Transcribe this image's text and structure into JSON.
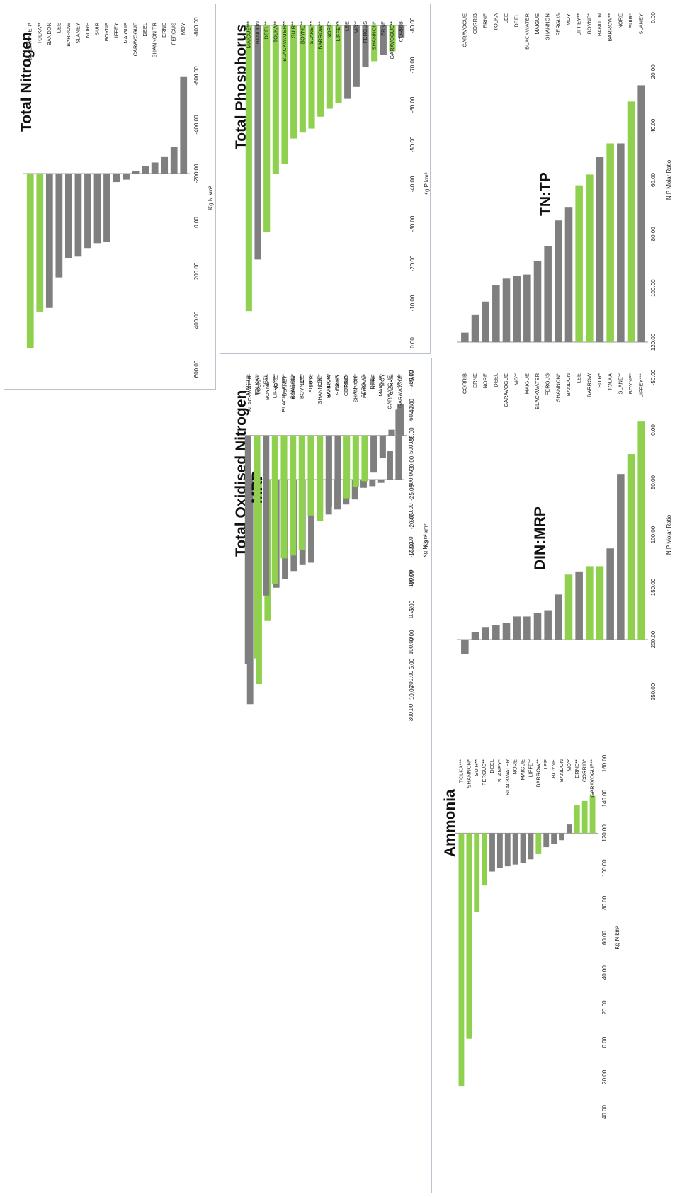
{
  "colors": {
    "gray": "#7f7f80",
    "green": "#8fd14f"
  },
  "chart_data": [
    {
      "type": "bar",
      "title": "Total Nitrogen",
      "xlabel": "Kg N km²",
      "xlim": [
        -800,
        600
      ],
      "ticks": [
        "-800.00",
        "-600.00",
        "-400.00",
        "-200.00",
        "0.00",
        "200.00",
        "400.00",
        "600.00"
      ],
      "categories": [
        "BLACKWATER*",
        "TOLKA**",
        "BANDON",
        "LEE",
        "BARROW",
        "SLANEY",
        "NORE",
        "SUIR",
        "BOYNE",
        "LIFFEY",
        "MAIGUE",
        "CARAVOGUE",
        "DEEL",
        "SHANNON TR",
        "ERNE",
        "FERGUS",
        "MOY"
      ],
      "values": [
        -715,
        -565,
        -550,
        -425,
        -345,
        -340,
        -305,
        -285,
        -280,
        -35,
        -25,
        10,
        30,
        45,
        70,
        110,
        395
      ],
      "colors": [
        "green",
        "green",
        "gray",
        "gray",
        "gray",
        "gray",
        "gray",
        "gray",
        "gray",
        "gray",
        "gray",
        "gray",
        "gray",
        "gray",
        "gray",
        "gray",
        "gray"
      ]
    },
    {
      "type": "bar",
      "title": "Total Phosphorus",
      "xlabel": "Kg P km²",
      "xlim": [
        -80,
        0
      ],
      "ticks": [
        "-80.00",
        "-70.00",
        "-60.00",
        "-50.00",
        "-40.00",
        "-30.00",
        "-20.00",
        "-10.00",
        "0.00"
      ],
      "categories": [
        "MAIGUE***",
        "BANDON",
        "DEEL**",
        "TOLKA**",
        "BLACKWATER**",
        "SUIR**",
        "BOYNE**",
        "SLANEY*",
        "BARROW**",
        "NORE*",
        "LIFFEY*",
        "LEE",
        "MOY",
        "FERGUS",
        "SHANNON*",
        "ERNE",
        "GARAVOGUE**",
        "CORRIB"
      ],
      "values": [
        -72,
        -59,
        -52,
        -37.5,
        -35,
        -28.5,
        -27,
        -26,
        -23,
        -21,
        -19.5,
        -18.5,
        -15.5,
        -10.5,
        -9,
        -7.5,
        -6.5,
        -3
      ],
      "colors": [
        "green",
        "gray",
        "green",
        "green",
        "green",
        "green",
        "green",
        "green",
        "green",
        "green",
        "green",
        "gray",
        "gray",
        "gray",
        "green",
        "gray",
        "green",
        "gray"
      ]
    },
    {
      "type": "bar",
      "title": "TN:TP",
      "xlabel": "N:P Molar Ratio",
      "xlim": [
        0,
        120
      ],
      "ticks": [
        "0.00",
        "20.00",
        "40.00",
        "60.00",
        "80.00",
        "100.00",
        "120.00"
      ],
      "categories": [
        "GARAVOGUE",
        "CORRIB",
        "ERNE",
        "TOLKA",
        "LEE",
        "DEEL",
        "BLACKWATER",
        "MAIGUE",
        "SHANNON",
        "FERGUS",
        "MOY",
        "LIFFEY**",
        "BOYNE*",
        "BANDON",
        "BARROW**",
        "NORE",
        "SUIR*",
        "SLANEY"
      ],
      "values": [
        3.5,
        10,
        15,
        21,
        23.5,
        24.5,
        25,
        30,
        35.5,
        45,
        50,
        58,
        62,
        68.5,
        73.5,
        73.5,
        89,
        95
      ],
      "colors": [
        "gray",
        "gray",
        "gray",
        "gray",
        "gray",
        "gray",
        "gray",
        "gray",
        "gray",
        "gray",
        "gray",
        "green",
        "green",
        "gray",
        "green",
        "gray",
        "green",
        "gray"
      ]
    },
    {
      "type": "bar",
      "title": "Total Oxidised Nitrogen",
      "xlabel": "Kg N km²",
      "xlim": [
        -700,
        300
      ],
      "ticks": [
        "-700.00",
        "-600.00",
        "-500.00",
        "-400.00",
        "-300.00",
        "-200.00",
        "-100.00",
        "0.00",
        "100.00",
        "200.00",
        "300.00"
      ],
      "categories": [
        "BLACKWATER",
        "TOLKA*",
        "BOYNE***",
        "NORE",
        "SLANEY",
        "BARROW",
        "LEE",
        "SUIR",
        "SHANNON*",
        "BANDON",
        "ERNE",
        "CORRIB",
        "LIFFEY",
        "FERGUS",
        "DEEL",
        "MAIGUE",
        "GARAVOGUE",
        "MOY"
      ],
      "values": [
        -675,
        -615,
        -425,
        -325,
        -300,
        -275,
        -255,
        -250,
        -125,
        -105,
        -90,
        -75,
        -60,
        -25,
        -20,
        -10,
        85,
        210
      ],
      "colors": [
        "gray",
        "green",
        "green",
        "gray",
        "gray",
        "gray",
        "gray",
        "gray",
        "green",
        "gray",
        "gray",
        "gray",
        "gray",
        "gray",
        "gray",
        "gray",
        "gray",
        "gray"
      ]
    },
    {
      "type": "bar",
      "title": "MRP",
      "xlabel": "Kg P km²",
      "xlim": [
        -45,
        10
      ],
      "ticks": [
        "-45.00",
        "-40.00",
        "-35.00",
        "-30.00",
        "-25.00",
        "-20.00",
        "-15.00",
        "-10.00",
        "-5.00",
        "0.00",
        "5.00",
        "10.00"
      ],
      "categories": [
        "MAIGUE",
        "TOLKA**",
        "DEEL",
        "LIFFEY***",
        "BLACKWATER*",
        "BANDON*",
        "BOYNE***",
        "SUIR***",
        "LEE*",
        "BARROW",
        "SLANEY",
        "ERNE*",
        "SHANNON*",
        "FERGUS*",
        "NORE",
        "MOY",
        "CORRIB",
        "GARAVOGUE"
      ],
      "values": [
        -40,
        -39,
        -28,
        -26,
        -21.5,
        -21,
        -20,
        -14,
        -13,
        -12.5,
        -12,
        -11,
        -9,
        -8,
        -6.5,
        -4,
        1,
        5.5
      ],
      "colors": [
        "gray",
        "green",
        "gray",
        "green",
        "green",
        "green",
        "green",
        "green",
        "green",
        "gray",
        "gray",
        "green",
        "green",
        "green",
        "gray",
        "gray",
        "gray",
        "gray"
      ]
    },
    {
      "type": "bar",
      "title": "DIN:MRP",
      "xlabel": "N:P Molar Ratio",
      "xlim": [
        -50,
        250
      ],
      "ticks": [
        "-50.00",
        "0.00",
        "50.00",
        "100.00",
        "150.00",
        "200.00",
        "250.00"
      ],
      "categories": [
        "CORRIB",
        "ERNE",
        "NORE",
        "DEEL",
        "GARAVOGUE",
        "MOY",
        "MAIGUE",
        "BLACKWATER",
        "FERGUS",
        "SHANNON*",
        "BANDON",
        "LEE",
        "BARROW",
        "SUIR*",
        "TOLKA",
        "SLANEY",
        "BOYNE*",
        "LIFFEY***"
      ],
      "values": [
        -14,
        7,
        12,
        14,
        16,
        22,
        22,
        25,
        28,
        43,
        62,
        65,
        70,
        70,
        87,
        158,
        177,
        208
      ],
      "colors": [
        "gray",
        "gray",
        "gray",
        "gray",
        "gray",
        "gray",
        "gray",
        "gray",
        "gray",
        "gray",
        "green",
        "gray",
        "green",
        "green",
        "gray",
        "gray",
        "green",
        "green"
      ]
    },
    {
      "type": "bar",
      "title": "Ammonia",
      "xlabel": "Kg N km²",
      "xlim": [
        -160,
        40
      ],
      "ticks": [
        "160.00",
        "140.00",
        "120.00",
        "100.00",
        "80.00",
        "60.00",
        "40.00",
        "20.00",
        "0.00",
        "20.00",
        "40.00"
      ],
      "categories": [
        "TOLKA***",
        "SHANNON*",
        "SUIR**",
        "FERGUS**",
        "DEEL",
        "SLANEY*",
        "BLACKWATER",
        "NORE",
        "MAIGUE",
        "LIFFEY",
        "BARROW**",
        "LEE",
        "BOYNE",
        "BANDON",
        "MOY",
        "ERNE**",
        "CORRIB*",
        "GARAVOGUE**"
      ],
      "values": [
        -145,
        -118,
        -45,
        -30,
        -22,
        -20,
        -19,
        -18,
        -17,
        -15,
        -12,
        -8,
        -6,
        -4,
        5,
        16,
        18.5,
        21.5
      ],
      "colors": [
        "green",
        "green",
        "green",
        "green",
        "gray",
        "gray",
        "gray",
        "gray",
        "gray",
        "gray",
        "green",
        "gray",
        "gray",
        "gray",
        "gray",
        "green",
        "green",
        "green"
      ]
    }
  ]
}
